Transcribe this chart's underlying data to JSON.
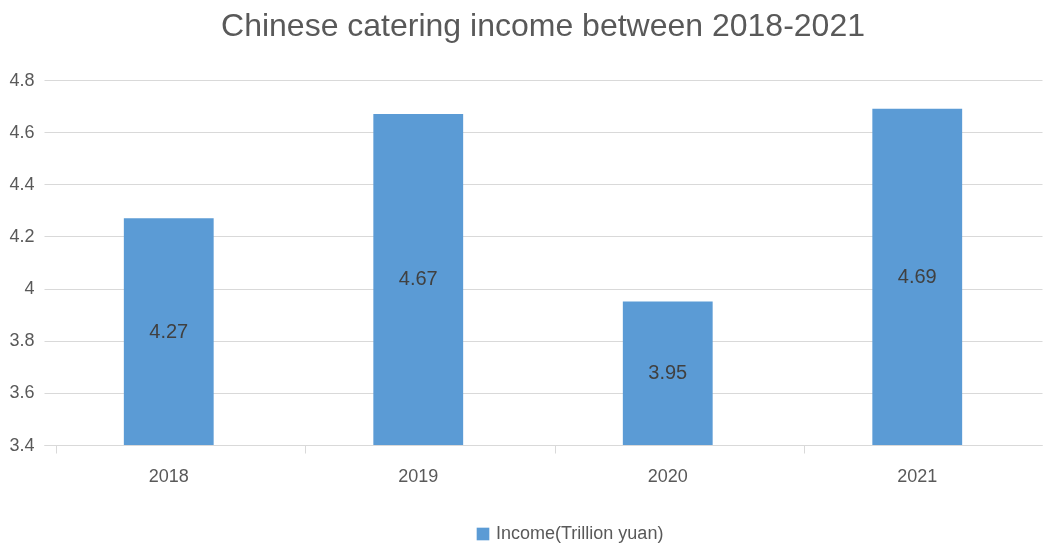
{
  "chart_data": {
    "type": "bar",
    "title": "Chinese catering income between 2018-2021",
    "categories": [
      "2018",
      "2019",
      "2020",
      "2021"
    ],
    "series": [
      {
        "name": "Income(Trillion yuan)",
        "color": "#5b9bd5",
        "values": [
          4.27,
          4.67,
          3.95,
          4.69
        ]
      }
    ],
    "ylim": [
      3.4,
      4.8
    ],
    "yticks": [
      3.4,
      3.6,
      3.8,
      4,
      4.2,
      4.4,
      4.6,
      4.8
    ],
    "grid": "y",
    "legend": "bottom",
    "data_labels": true
  }
}
